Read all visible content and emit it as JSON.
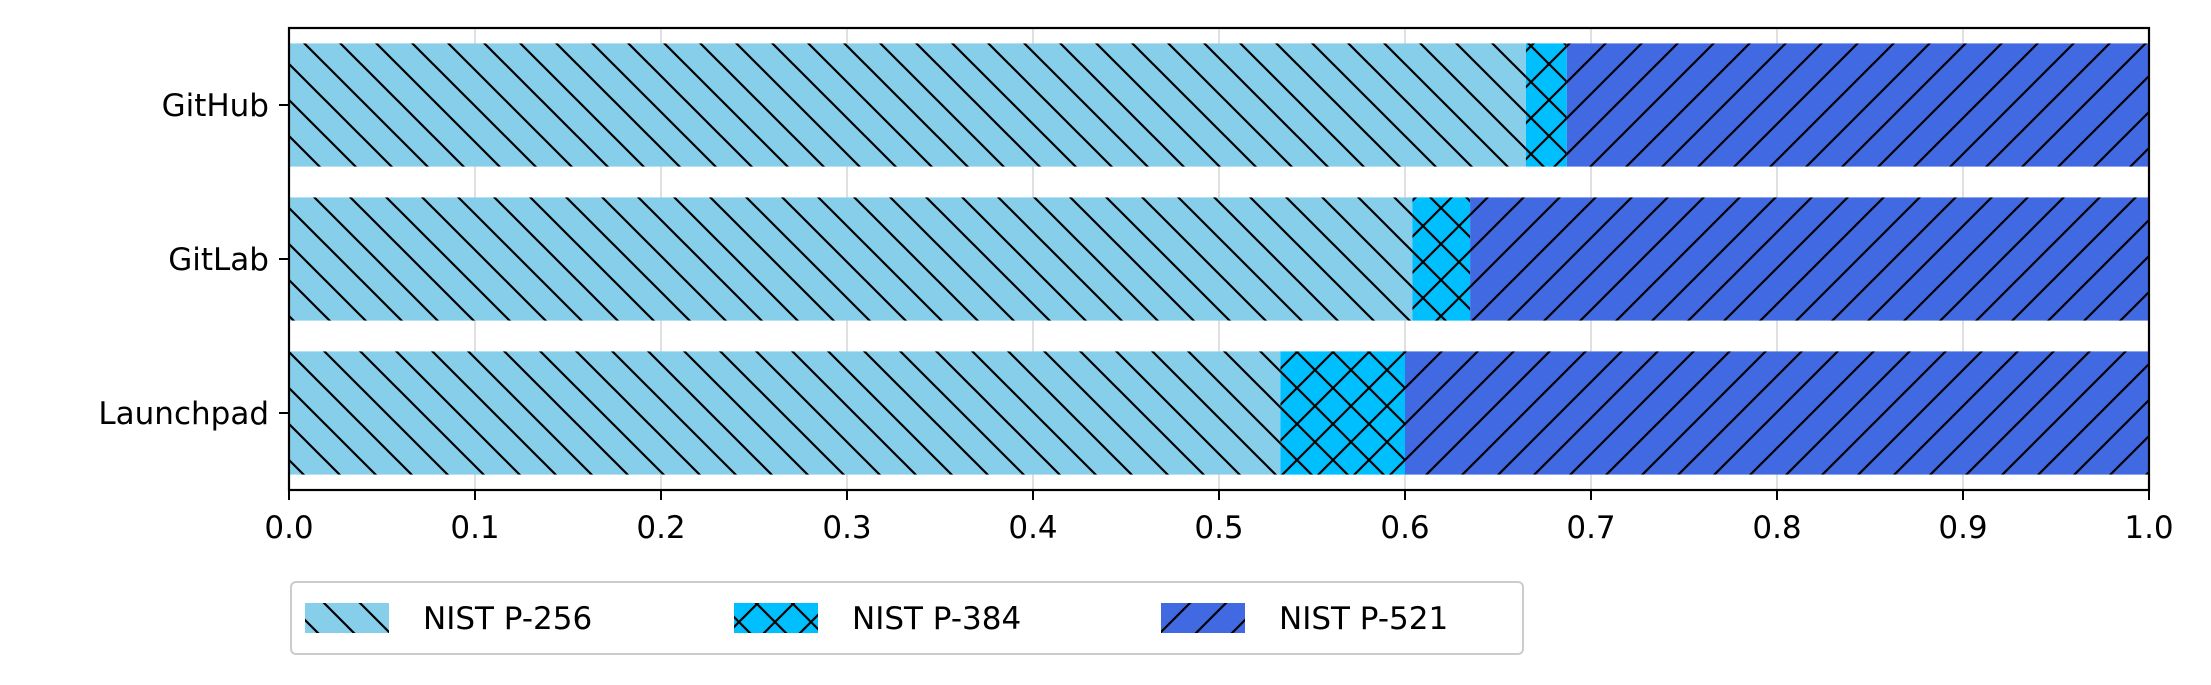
{
  "chart_data": {
    "type": "bar",
    "orientation": "horizontal",
    "stacked": true,
    "categories": [
      "GitHub",
      "GitLab",
      "Launchpad"
    ],
    "series": [
      {
        "name": "NIST P-256",
        "values": [
          0.665,
          0.604,
          0.533
        ],
        "color": "#87CEEB",
        "hatch": "backslash"
      },
      {
        "name": "NIST P-384",
        "values": [
          0.022,
          0.031,
          0.067
        ],
        "color": "#00BFFF",
        "hatch": "cross"
      },
      {
        "name": "NIST P-521",
        "values": [
          0.313,
          0.365,
          0.4
        ],
        "color": "#4169E1",
        "hatch": "slash"
      }
    ],
    "xlim": [
      0.0,
      1.0
    ],
    "xticks": [
      "0.0",
      "0.1",
      "0.2",
      "0.3",
      "0.4",
      "0.5",
      "0.6",
      "0.7",
      "0.8",
      "0.9",
      "1.0"
    ],
    "grid": "vertical",
    "legend_position": "bottom-left"
  }
}
